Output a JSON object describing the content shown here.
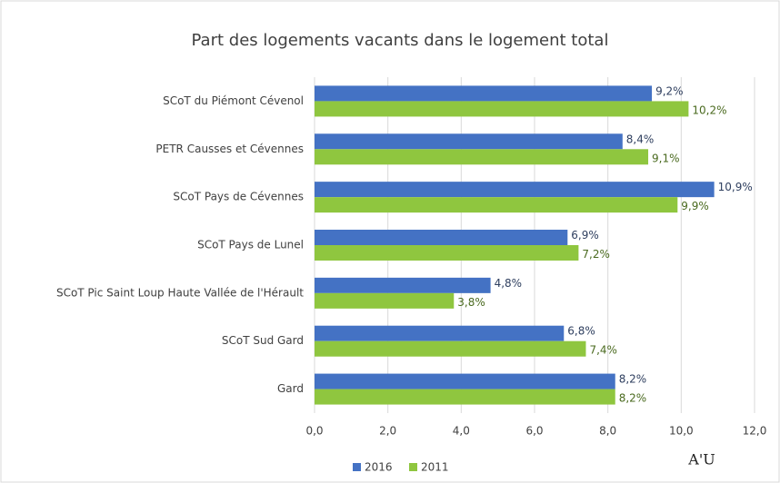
{
  "chart_data": {
    "type": "bar",
    "orientation": "horizontal",
    "title": "Part des logements vacants dans le logement total",
    "categories": [
      "SCoT du Piémont Cévenol",
      "PETR Causses et Cévennes",
      "SCoT Pays de Cévennes",
      "SCoT Pays de Lunel",
      "SCoT Pic Saint Loup Haute Vallée de l'Hérault",
      "SCoT Sud Gard",
      "Gard"
    ],
    "series": [
      {
        "name": "2016",
        "color": "#4472c4",
        "values": [
          9.2,
          8.4,
          10.9,
          6.9,
          4.8,
          6.8,
          8.2
        ],
        "value_labels": [
          "9,2%",
          "8,4%",
          "10,9%",
          "6,9%",
          "4,8%",
          "6,8%",
          "8,2%"
        ]
      },
      {
        "name": "2011",
        "color": "#8fc63f",
        "values": [
          10.2,
          9.1,
          9.9,
          7.2,
          3.8,
          7.4,
          8.2
        ],
        "value_labels": [
          "10,2%",
          "9,1%",
          "9,9%",
          "7,2%",
          "3,8%",
          "7,4%",
          "8,2%"
        ]
      }
    ],
    "xlim": [
      0,
      12
    ],
    "xticks": [
      {
        "value": 0,
        "label": "0,0"
      },
      {
        "value": 2,
        "label": "2,0"
      },
      {
        "value": 4,
        "label": "4,0"
      },
      {
        "value": 6,
        "label": "6,0"
      },
      {
        "value": 8,
        "label": "8,0"
      },
      {
        "value": 10,
        "label": "10,0"
      },
      {
        "value": 12,
        "label": "12,0"
      }
    ],
    "grid": true,
    "legend": "bottom",
    "logo": "A'U"
  }
}
